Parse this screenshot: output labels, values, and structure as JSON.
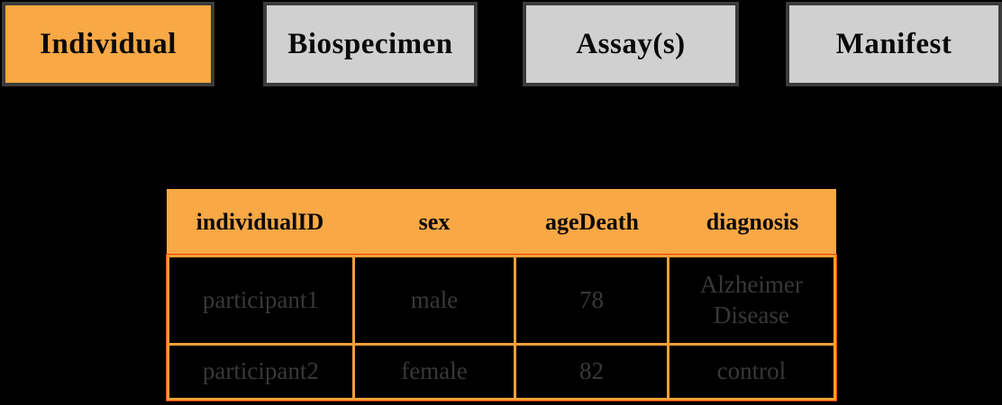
{
  "tabs": {
    "items": [
      {
        "label": "Individual",
        "active": true
      },
      {
        "label": "Biospecimen",
        "active": false
      },
      {
        "label": "Assay(s)",
        "active": false
      },
      {
        "label": "Manifest",
        "active": false
      }
    ]
  },
  "table": {
    "headers": [
      "individualID",
      "sex",
      "ageDeath",
      "diagnosis"
    ],
    "rows": [
      [
        "participant1",
        "male",
        "78",
        "Alzheimer Disease"
      ],
      [
        "participant2",
        "female",
        "82",
        "control"
      ]
    ]
  },
  "colors": {
    "accent_orange": "#f8a845",
    "gridline_orange": "#f7a036",
    "outer_red": "#ef3b09",
    "inactive_tab_gray": "#d0d0d0",
    "background": "#000000",
    "tab_text": "#0a0a0a",
    "body_text": "#383838"
  }
}
